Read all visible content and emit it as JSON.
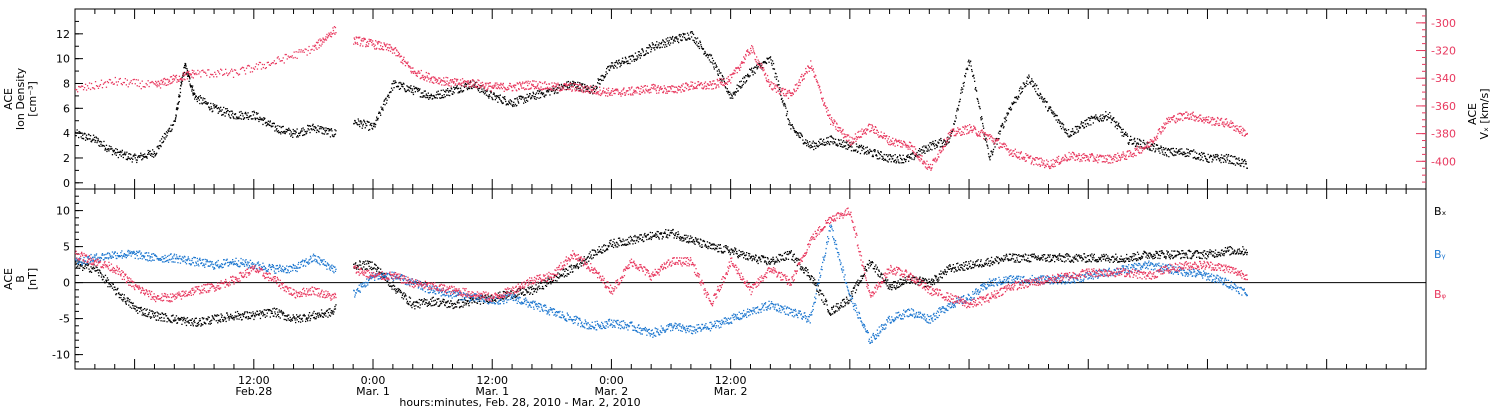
{
  "chart_data": [
    {
      "type": "scatter",
      "panel": "top",
      "ylabel_lines": [
        "ACE",
        "Ion Density",
        "[cm⁻³]"
      ],
      "y2label_lines": [
        "ACE",
        "Vₓ [km/s]"
      ],
      "ylim": [
        -0.5,
        14
      ],
      "yticks": [
        "0",
        "2",
        "4",
        "6",
        "8",
        "10",
        "12"
      ],
      "y2lim": [
        -420,
        -290
      ],
      "y2ticks": [
        "-300",
        "-320",
        "-340",
        "-360",
        "-380",
        "-400"
      ],
      "xlim": [
        -18,
        118
      ],
      "series": [
        {
          "axis": "left",
          "color": "#000000",
          "x": [
            -18,
            -16,
            -14,
            -12,
            -10,
            -8,
            -7,
            -6,
            -4,
            -2,
            0,
            2,
            4,
            6,
            8,
            10,
            12,
            14,
            16,
            18,
            20,
            22,
            24,
            26,
            28,
            30,
            32,
            34,
            36,
            38,
            40,
            42,
            44,
            46,
            48,
            50,
            52,
            54,
            56,
            58,
            60,
            62,
            64,
            66,
            68,
            70,
            72,
            74,
            76,
            78,
            80,
            82,
            84,
            86,
            88,
            90,
            92,
            94,
            96,
            98,
            100
          ],
          "y": [
            4,
            3.5,
            2.5,
            2,
            2.5,
            5,
            9.5,
            7,
            6,
            5.5,
            5.5,
            4.5,
            4,
            4.5,
            4,
            5,
            4.5,
            8,
            7.5,
            7,
            7.5,
            8,
            7,
            6.5,
            7,
            7.5,
            8,
            7.5,
            9.5,
            10,
            11,
            11.5,
            12,
            10,
            7,
            9,
            10,
            4.5,
            3,
            3.5,
            3,
            2.5,
            2,
            2,
            3,
            3.5,
            10,
            2,
            6,
            8.5,
            6,
            4,
            5,
            5.5,
            3.5,
            3,
            2.5,
            2.5,
            2,
            2,
            1.5
          ]
        },
        {
          "axis": "right",
          "color": "#e8395f",
          "x": [
            -18,
            -14,
            -10,
            -8,
            -6,
            -2,
            2,
            6,
            8,
            10,
            12,
            14,
            16,
            18,
            20,
            22,
            24,
            26,
            28,
            30,
            32,
            34,
            36,
            38,
            40,
            42,
            44,
            46,
            48,
            50,
            52,
            54,
            56,
            58,
            60,
            62,
            64,
            66,
            68,
            70,
            72,
            74,
            76,
            78,
            80,
            82,
            84,
            86,
            88,
            90,
            92,
            94,
            96,
            98,
            100
          ],
          "y": [
            -348,
            -342,
            -345,
            -340,
            -336,
            -336,
            -328,
            -318,
            -305,
            -312,
            -315,
            -319,
            -335,
            -340,
            -343,
            -343,
            -346,
            -346,
            -344,
            -346,
            -346,
            -348,
            -350,
            -349,
            -347,
            -348,
            -345,
            -345,
            -340,
            -318,
            -345,
            -352,
            -330,
            -370,
            -385,
            -375,
            -385,
            -388,
            -405,
            -380,
            -376,
            -382,
            -392,
            -398,
            -402,
            -396,
            -397,
            -398,
            -395,
            -388,
            -370,
            -366,
            -370,
            -372,
            -380
          ]
        }
      ]
    },
    {
      "type": "scatter",
      "panel": "bottom",
      "ylabel_lines": [
        "ACE",
        "B",
        "[nT]"
      ],
      "ylim": [
        -12,
        13
      ],
      "yticks": [
        "-10",
        "-5",
        "0",
        "5",
        "10"
      ],
      "zero_line": true,
      "xlim": [
        -18,
        118
      ],
      "x_major_ticks": [
        {
          "x": 0,
          "lines": [
            "12:00",
            "Feb.28"
          ]
        },
        {
          "x": 12,
          "lines": [
            "0:00",
            "Mar. 1"
          ]
        },
        {
          "x": 24,
          "lines": [
            "12:00",
            "Mar. 1"
          ]
        },
        {
          "x": 36,
          "lines": [
            "0:00",
            "Mar. 2"
          ]
        },
        {
          "x": 48,
          "lines": [
            "12:00",
            "Mar. 2"
          ]
        }
      ],
      "xlabel": "hours:minutes, Feb. 28, 2010 - Mar. 2, 2010",
      "series": [
        {
          "name": "Bₓ",
          "color": "#000000",
          "x": [
            -18,
            -16,
            -14,
            -12,
            -10,
            -8,
            -6,
            -4,
            -2,
            0,
            2,
            4,
            6,
            8,
            10,
            12,
            14,
            16,
            18,
            20,
            22,
            24,
            26,
            28,
            30,
            32,
            34,
            36,
            38,
            40,
            42,
            44,
            46,
            48,
            50,
            52,
            54,
            56,
            58,
            60,
            62,
            64,
            66,
            68,
            70,
            72,
            74,
            76,
            78,
            80,
            82,
            84,
            86,
            88,
            90,
            92,
            94,
            96,
            98,
            100
          ],
          "y": [
            2.5,
            2,
            -1,
            -3.5,
            -4.5,
            -5,
            -5.5,
            -5,
            -4.5,
            -4.5,
            -4,
            -5,
            -4.5,
            -4,
            2.5,
            2.5,
            -0.5,
            -3,
            -2.5,
            -3,
            -2.5,
            -2,
            -1.5,
            -1,
            0.5,
            2,
            4,
            5.5,
            6,
            6.5,
            7,
            6,
            5,
            4.5,
            3.5,
            3,
            4,
            1,
            -4,
            -2,
            3,
            -0.5,
            0.5,
            0,
            2,
            2.5,
            3,
            3.5,
            3.5,
            3.5,
            3.5,
            3.5,
            3.5,
            3.5,
            4,
            4,
            4,
            4,
            4.5,
            4.5
          ]
        },
        {
          "name": "Bᵧ",
          "color": "#1f78d0",
          "x": [
            -18,
            -16,
            -14,
            -12,
            -10,
            -8,
            -6,
            -4,
            -2,
            0,
            2,
            4,
            6,
            8,
            10,
            12,
            14,
            16,
            18,
            20,
            22,
            24,
            26,
            28,
            30,
            32,
            34,
            36,
            38,
            40,
            42,
            44,
            46,
            48,
            50,
            52,
            54,
            56,
            58,
            60,
            62,
            64,
            66,
            68,
            70,
            72,
            74,
            76,
            78,
            80,
            82,
            84,
            86,
            88,
            90,
            92,
            94,
            96,
            98,
            100
          ],
          "y": [
            3,
            3.5,
            4,
            4,
            3.5,
            3.5,
            3,
            2.5,
            3,
            2.5,
            2,
            2,
            3.5,
            2,
            -1.5,
            1,
            1,
            0,
            -1,
            -1.5,
            -2,
            -2.5,
            -2,
            -3,
            -4,
            -5,
            -6,
            -5.5,
            -6,
            -7,
            -6,
            -6.5,
            -6,
            -5,
            -4,
            -3,
            -4,
            -5,
            8,
            -2,
            -8,
            -5,
            -4,
            -5,
            -3,
            -2,
            0,
            0.5,
            0.5,
            0.5,
            0.5,
            1,
            1.5,
            2,
            2.5,
            2,
            1.5,
            1,
            0,
            -1.5
          ]
        },
        {
          "name": "Bᵩ",
          "color": "#e8395f",
          "x": [
            -18,
            -16,
            -14,
            -12,
            -10,
            -8,
            -6,
            -4,
            -2,
            0,
            2,
            4,
            6,
            8,
            10,
            12,
            14,
            16,
            18,
            20,
            22,
            24,
            26,
            28,
            30,
            32,
            34,
            36,
            38,
            40,
            42,
            44,
            46,
            48,
            50,
            52,
            54,
            56,
            58,
            60,
            62,
            64,
            66,
            68,
            70,
            72,
            74,
            76,
            78,
            80,
            82,
            84,
            86,
            88,
            90,
            92,
            94,
            96,
            98,
            100
          ],
          "y": [
            4,
            3,
            2,
            -0.5,
            -2,
            -2,
            -1,
            -0.5,
            0.5,
            2,
            0.5,
            -1.5,
            -1,
            -2,
            2,
            1,
            1,
            0,
            -0.5,
            -1,
            -1.5,
            -2,
            -1,
            0.5,
            1,
            4,
            2,
            -1,
            3,
            1,
            3,
            3,
            -3,
            3,
            -1,
            2,
            0,
            6,
            9,
            10,
            -2,
            2,
            1,
            -1,
            -2,
            -3,
            -2,
            -0.5,
            0,
            0.5,
            1,
            1.5,
            1.5,
            1.5,
            1,
            2,
            2.5,
            2.5,
            2,
            1
          ]
        }
      ]
    }
  ]
}
